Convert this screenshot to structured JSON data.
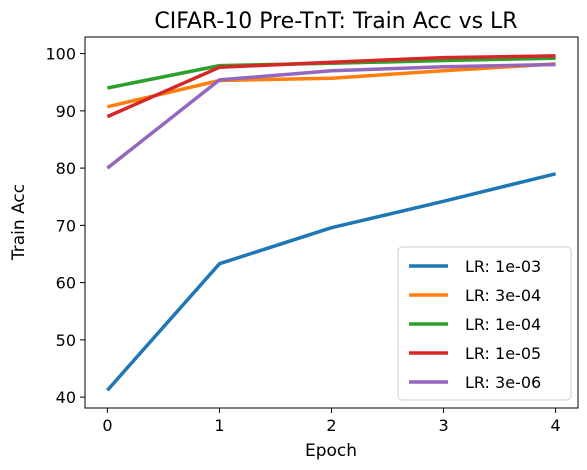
{
  "chart_data": {
    "type": "line",
    "title": "CIFAR-10 Pre-TnT: Train Acc vs LR",
    "xlabel": "Epoch",
    "ylabel": "Train Acc",
    "x": [
      0,
      1,
      2,
      3,
      4
    ],
    "xticks": [
      "0",
      "1",
      "2",
      "3",
      "4"
    ],
    "yticks": [
      "40",
      "50",
      "60",
      "70",
      "80",
      "90",
      "100"
    ],
    "xlim": [
      -0.2,
      4.2
    ],
    "ylim": [
      38.1,
      102.9
    ],
    "grid": false,
    "legend_position": "lower-right",
    "series": [
      {
        "name": "LR: 1e-03",
        "color": "#1f77b4",
        "values": [
          41.2,
          63.3,
          69.6,
          74.2,
          79.0
        ]
      },
      {
        "name": "LR: 3e-04",
        "color": "#ff7f0e",
        "values": [
          90.7,
          95.3,
          95.7,
          97.0,
          98.2
        ]
      },
      {
        "name": "LR: 1e-04",
        "color": "#2ca02c",
        "values": [
          94.0,
          97.9,
          98.3,
          98.8,
          99.2
        ]
      },
      {
        "name": "LR: 1e-05",
        "color": "#d62728",
        "values": [
          89.0,
          97.6,
          98.5,
          99.3,
          99.6
        ]
      },
      {
        "name": "LR: 3e-06",
        "color": "#9467bd",
        "values": [
          80.0,
          95.4,
          97.0,
          97.7,
          98.1
        ]
      }
    ]
  }
}
